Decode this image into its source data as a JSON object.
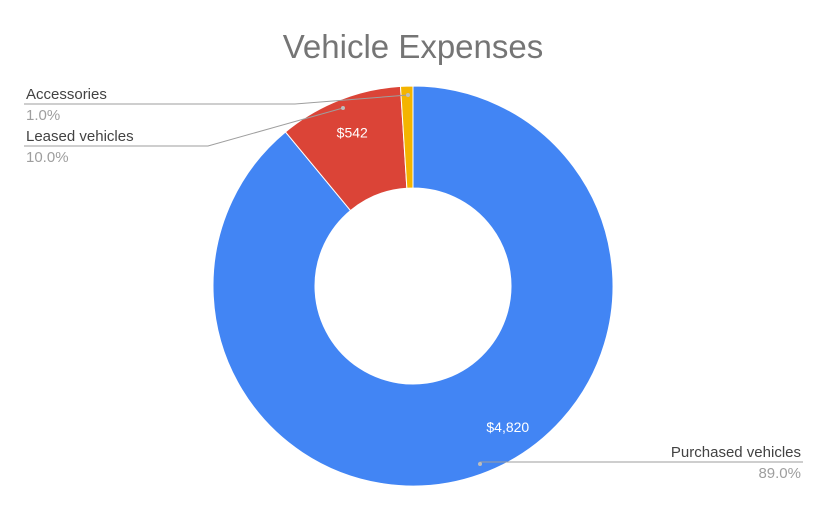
{
  "chart_data": {
    "type": "pie",
    "title": "Vehicle Expenses",
    "donut": true,
    "slices": [
      {
        "name": "Purchased vehicles",
        "value": 4820,
        "value_label": "$4,820",
        "percent_label": "89.0%",
        "color": "#4285f4"
      },
      {
        "name": "Leased vehicles",
        "value": 542,
        "value_label": "$542",
        "percent_label": "10.0%",
        "color": "#db4437"
      },
      {
        "name": "Accessories",
        "value": 54,
        "value_label": "",
        "percent_label": "1.0%",
        "color": "#f4b400"
      }
    ],
    "legend": "callouts"
  }
}
